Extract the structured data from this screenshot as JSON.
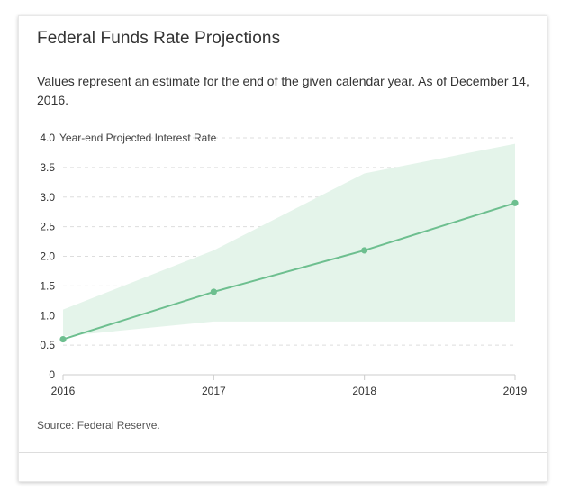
{
  "card": {
    "title": "Federal Funds Rate Projections",
    "subtitle": "Values represent an estimate for the end of the given calendar year. As of December 14, 2016.",
    "source": "Source: Federal Reserve."
  },
  "colors": {
    "line": "#6dbf8f",
    "band": "#e4f4ea",
    "grid": "#dddddd",
    "axis": "#cccccc",
    "tick_text": "#333333"
  },
  "chart_data": {
    "type": "line",
    "title": "",
    "ylabel": "Year-end Projected Interest Rate",
    "xlabel": "",
    "x": [
      "2016",
      "2017",
      "2018",
      "2019"
    ],
    "series": [
      {
        "values": [
          0.6,
          1.4,
          2.1,
          2.9
        ]
      }
    ],
    "range_band": {
      "low": [
        0.65,
        0.9,
        0.9,
        0.9
      ],
      "high": [
        1.1,
        2.1,
        3.4,
        3.9
      ]
    },
    "ylim": [
      0,
      4.0
    ],
    "yticks": [
      "0",
      "0.5",
      "1.0",
      "1.5",
      "2.0",
      "2.5",
      "3.0",
      "3.5",
      "4.0"
    ],
    "grid": true,
    "legend": "none"
  }
}
